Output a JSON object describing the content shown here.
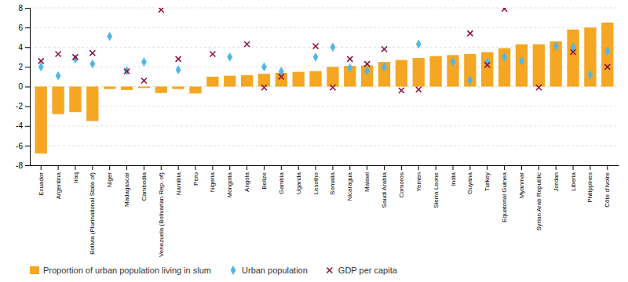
{
  "chart_data": {
    "type": "bar",
    "categories": [
      "Ecuador",
      "Argentina",
      "Iraq",
      "Bolivia (Plurinational State of)",
      "Niger",
      "Madagascar",
      "Cambodia",
      "Venezuela (Bolivarian Rep. of)",
      "Namibia",
      "Peru",
      "Nigeria",
      "Mongolia",
      "Angola",
      "Belize",
      "Gambia",
      "Uganda",
      "Lesotho",
      "Somalia",
      "Nicaragua",
      "Malawi",
      "Saudi Arabia",
      "Comoros",
      "Yemen",
      "Sierra Leone",
      "India",
      "Guyana",
      "Turkey",
      "Equatorial Guinea",
      "Myanmar",
      "Syrian Arab Republic",
      "Jordan",
      "Liberia",
      "Philippines",
      "Côte d'Ivoire"
    ],
    "series": [
      {
        "name": "Proportion of urban population living in slum",
        "type": "bar",
        "color": "#f5a623",
        "values": [
          -6.8,
          -2.8,
          -2.6,
          -3.5,
          -0.25,
          -0.35,
          -0.15,
          -0.65,
          -0.25,
          -0.7,
          1.0,
          1.1,
          1.15,
          1.3,
          1.4,
          1.5,
          1.55,
          2.0,
          2.1,
          2.15,
          2.5,
          2.7,
          2.9,
          3.1,
          3.2,
          3.3,
          3.5,
          3.9,
          4.3,
          4.3,
          4.6,
          5.8,
          6.0,
          6.5
        ]
      },
      {
        "name": "Urban population",
        "type": "scatter",
        "marker": "diamond",
        "color": "#4db8e8",
        "values": [
          2.0,
          1.1,
          2.8,
          2.3,
          5.1,
          1.6,
          2.5,
          null,
          1.7,
          null,
          null,
          3.0,
          null,
          2.0,
          1.55,
          null,
          3.0,
          4.0,
          1.9,
          1.6,
          2.0,
          null,
          4.3,
          null,
          2.5,
          0.65,
          2.5,
          3.0,
          2.6,
          null,
          4.1,
          4.0,
          1.2,
          3.6
        ]
      },
      {
        "name": "GDP per capita",
        "type": "scatter",
        "marker": "x",
        "color": "#8b1535",
        "values": [
          2.6,
          3.3,
          3.0,
          3.4,
          null,
          1.55,
          0.6,
          7.8,
          2.8,
          null,
          3.3,
          null,
          4.3,
          -0.1,
          1.0,
          null,
          4.1,
          -0.1,
          2.8,
          2.3,
          3.8,
          -0.4,
          -0.3,
          null,
          null,
          5.4,
          2.2,
          7.9,
          null,
          -0.1,
          null,
          3.5,
          null,
          2.0
        ]
      }
    ],
    "ylim": [
      -8,
      8
    ],
    "yticks": [
      -8,
      -6,
      -4,
      -2,
      0,
      2,
      4,
      6,
      8
    ],
    "grid": true,
    "legend": "bottom"
  }
}
